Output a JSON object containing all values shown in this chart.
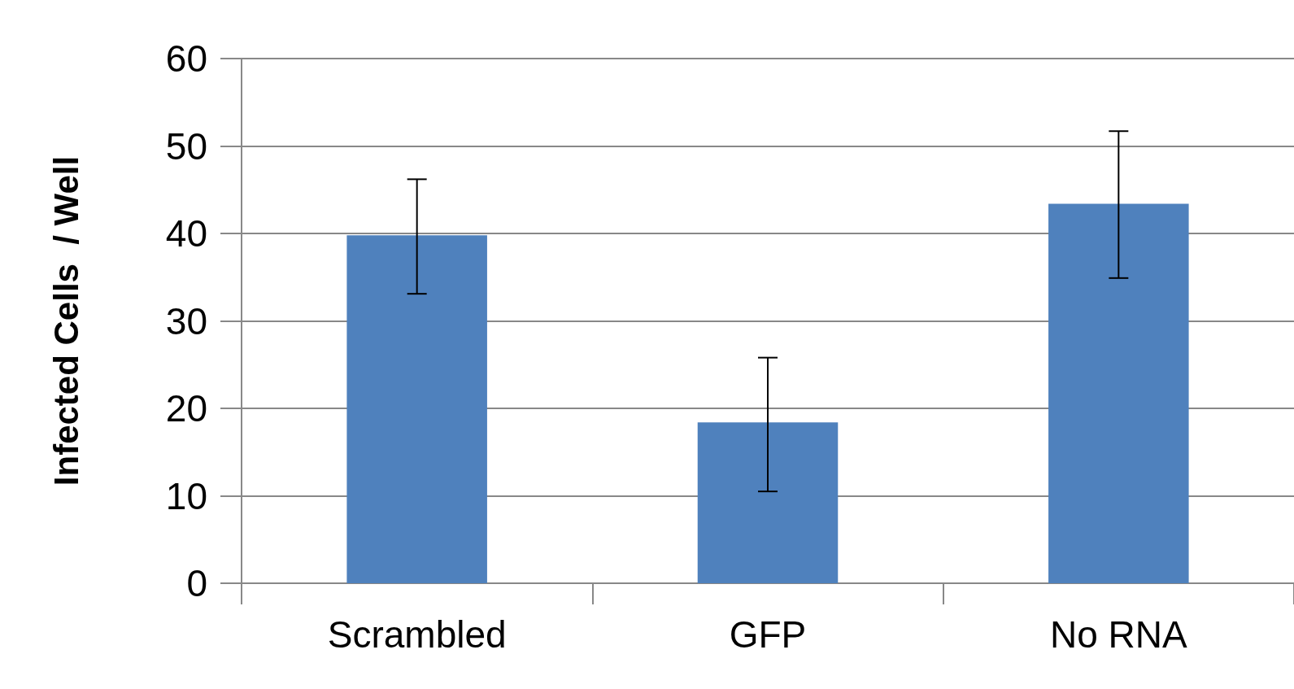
{
  "chart_data": {
    "type": "bar",
    "ylabel": "Infected Cells  / Well",
    "categories": [
      "Scrambled",
      "GFP",
      "No RNA"
    ],
    "values": [
      39.8,
      18.4,
      43.4
    ],
    "errors": [
      [
        33.1,
        46.2
      ],
      [
        10.5,
        25.8
      ],
      [
        34.9,
        51.7
      ]
    ],
    "color": "#4f81bd",
    "ylim": [
      0,
      60
    ],
    "yticks": [
      0,
      10,
      20,
      30,
      40,
      50,
      60
    ],
    "grid": "y"
  }
}
